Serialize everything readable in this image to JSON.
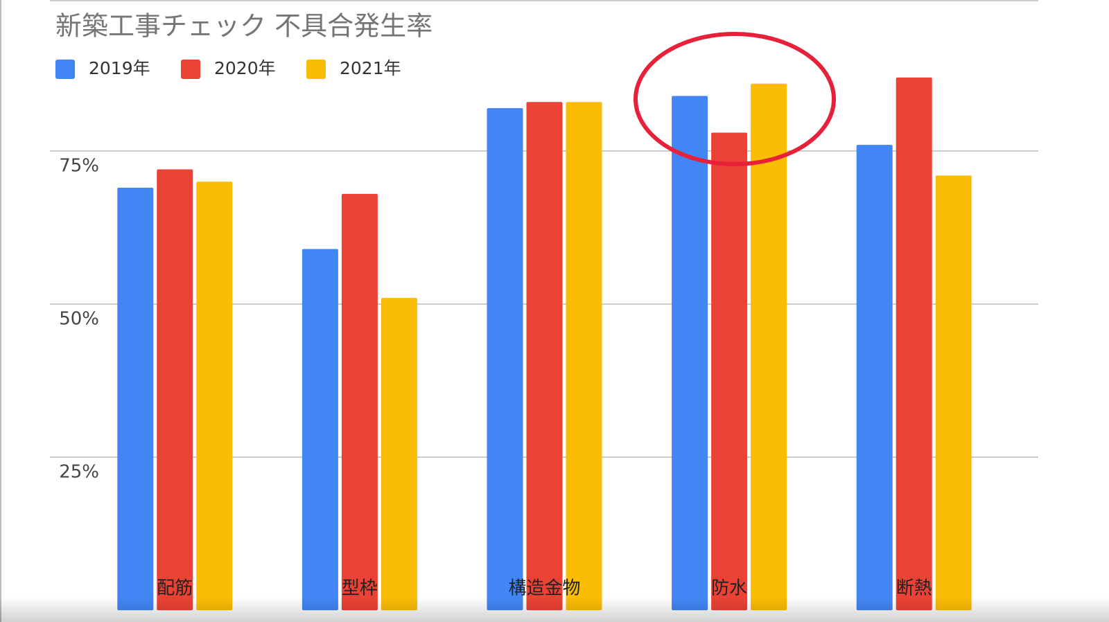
{
  "chart_data": {
    "type": "bar",
    "title": "新築工事チェック 不具合発生率",
    "categories": [
      "配筋",
      "型枠",
      "構造金物",
      "防水",
      "断熱"
    ],
    "series": [
      {
        "name": "2019年",
        "color": "#4285f4",
        "values": [
          69,
          59,
          82,
          84,
          76
        ]
      },
      {
        "name": "2020年",
        "color": "#ea4335",
        "values": [
          72,
          68,
          83,
          78,
          87
        ]
      },
      {
        "name": "2021年",
        "color": "#fbbc04",
        "values": [
          70,
          51,
          83,
          86,
          71
        ]
      }
    ],
    "ylim": [
      0,
      100
    ],
    "yticks": [
      {
        "value": 25,
        "label": "25%"
      },
      {
        "value": 50,
        "label": "50%"
      },
      {
        "value": 75,
        "label": "75%"
      }
    ],
    "grid": true
  }
}
